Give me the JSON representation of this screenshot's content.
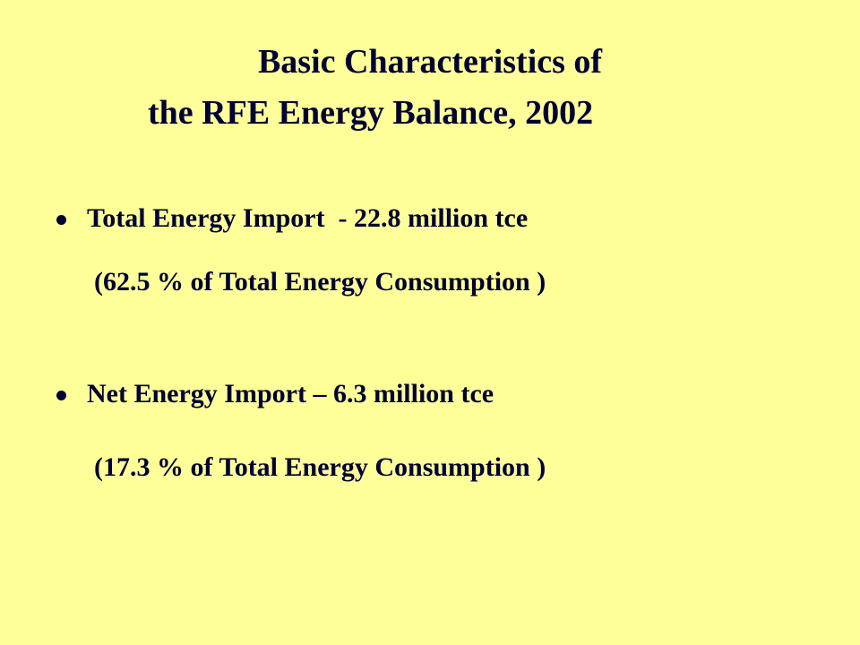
{
  "title": {
    "lines": [
      "Basic Characteristics of",
      "the RFE Energy Balance, 2002"
    ]
  },
  "bullets": [
    {
      "text": "Total Energy Import  - 22.8 million tce",
      "note": "(62.5 % of Total Energy Consumption )"
    },
    {
      "text": "Net Energy Import – 6.3 million tce",
      "note": "(17.3 % of Total Energy Consumption )"
    }
  ]
}
